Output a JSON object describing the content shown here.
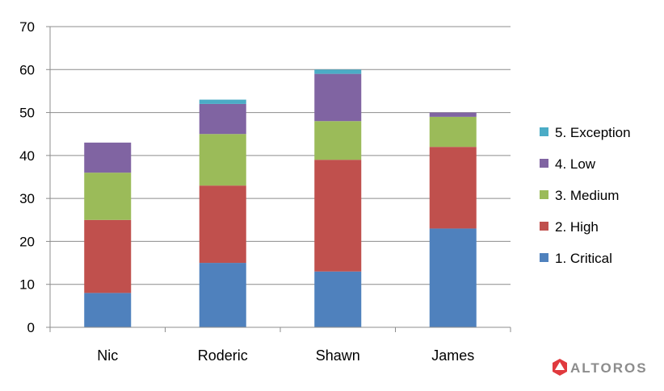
{
  "chart_data": {
    "type": "bar",
    "stacked": true,
    "categories": [
      "Nic",
      "Roderic",
      "Shawn",
      "James"
    ],
    "series": [
      {
        "name": "1. Critical",
        "values": [
          8,
          15,
          13,
          23
        ],
        "color": "#4f81bd"
      },
      {
        "name": "2. High",
        "values": [
          17,
          18,
          26,
          19
        ],
        "color": "#c0504d"
      },
      {
        "name": "3. Medium",
        "values": [
          11,
          12,
          9,
          7
        ],
        "color": "#9bbb59"
      },
      {
        "name": "4. Low",
        "values": [
          7,
          7,
          11,
          1
        ],
        "color": "#8064a2"
      },
      {
        "name": "5. Exception",
        "values": [
          0,
          1,
          1,
          0
        ],
        "color": "#4bacc6"
      }
    ],
    "ylim": [
      0,
      70
    ],
    "yticks": [
      0,
      10,
      20,
      30,
      40,
      50,
      60,
      70
    ],
    "grid": true,
    "legend_position": "right",
    "legend_order": "reversed"
  },
  "watermark": {
    "text": "ALTOROS",
    "icon": "altoros-logo-icon",
    "color": "#e03a3e"
  }
}
